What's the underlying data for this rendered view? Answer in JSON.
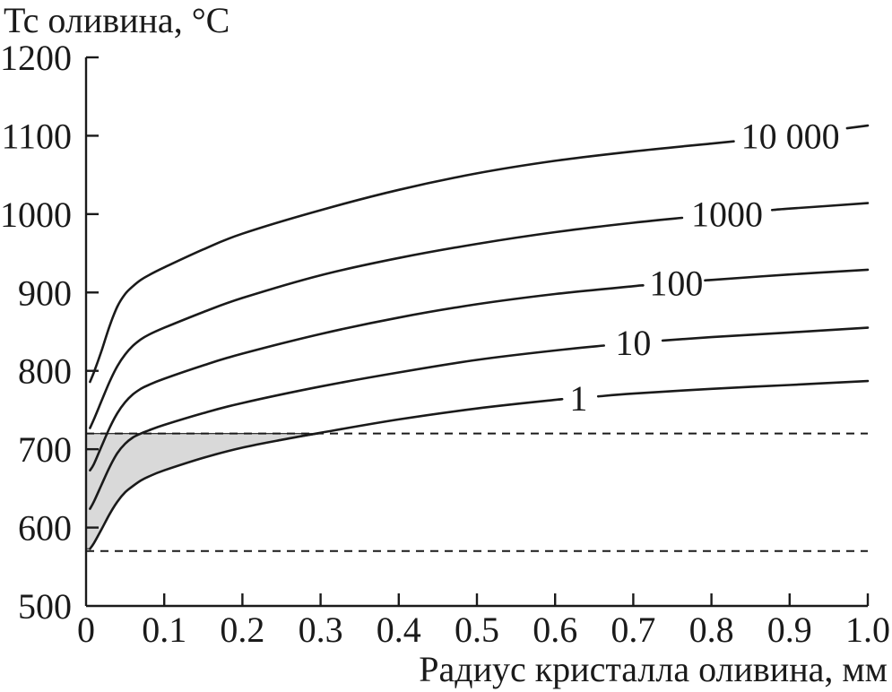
{
  "chart_data": {
    "type": "line",
    "title": "",
    "ylabel": "Tc оливина, °C",
    "xlabel": "Радиус кристалла оливина, мм",
    "xlim": [
      0,
      1.0
    ],
    "ylim": [
      500,
      1200
    ],
    "x_ticks": [
      "0",
      "0.1",
      "0.2",
      "0.3",
      "0.4",
      "0.5",
      "0.6",
      "0.7",
      "0.8",
      "0.9",
      "1.0"
    ],
    "x_tick_values": [
      0,
      0.1,
      0.2,
      0.3,
      0.4,
      0.5,
      0.6,
      0.7,
      0.8,
      0.9,
      1.0
    ],
    "y_ticks": [
      "500",
      "600",
      "700",
      "800",
      "900",
      "1000",
      "1100",
      "1200"
    ],
    "y_tick_values": [
      500,
      600,
      700,
      800,
      900,
      1000,
      1100,
      1200
    ],
    "grid": false,
    "reference_lines": [
      {
        "name": "upper-dashed",
        "y": 720
      },
      {
        "name": "lower-dashed",
        "y": 570
      }
    ],
    "shaded_region": {
      "x_from": 0,
      "x_to": 0.3,
      "y_top": 720,
      "bounded_below_by_series": "1",
      "color": "#d9d9d9"
    },
    "series": [
      {
        "name": "1",
        "label": "1",
        "x": [
          0.005,
          0.01,
          0.02,
          0.03,
          0.04,
          0.05,
          0.06,
          0.07,
          0.08,
          0.1,
          0.15,
          0.2,
          0.25,
          0.3,
          0.4,
          0.5,
          0.6,
          0.7,
          0.8,
          0.9,
          1.0
        ],
        "y": [
          573,
          580,
          598,
          617,
          633,
          645,
          653,
          660,
          665,
          673,
          689,
          702,
          712,
          721,
          738,
          752,
          763,
          771,
          777,
          782,
          787
        ]
      },
      {
        "name": "10",
        "label": "10",
        "x": [
          0.005,
          0.01,
          0.02,
          0.03,
          0.04,
          0.05,
          0.06,
          0.07,
          0.08,
          0.1,
          0.15,
          0.2,
          0.3,
          0.4,
          0.5,
          0.6,
          0.7,
          0.8,
          0.9,
          1.0
        ],
        "y": [
          624,
          633,
          655,
          677,
          695,
          707,
          715,
          720,
          724,
          731,
          746,
          759,
          780,
          798,
          814,
          826,
          836,
          843,
          849,
          855
        ]
      },
      {
        "name": "100",
        "label": "100",
        "x": [
          0.005,
          0.01,
          0.02,
          0.03,
          0.04,
          0.05,
          0.06,
          0.07,
          0.08,
          0.1,
          0.15,
          0.2,
          0.3,
          0.4,
          0.5,
          0.6,
          0.7,
          0.8,
          0.9,
          1.0
        ],
        "y": [
          673,
          681,
          704,
          727,
          746,
          760,
          770,
          777,
          782,
          790,
          807,
          822,
          847,
          868,
          885,
          898,
          908,
          916,
          923,
          929
        ]
      },
      {
        "name": "1000",
        "label": "1000",
        "x": [
          0.005,
          0.01,
          0.02,
          0.03,
          0.04,
          0.05,
          0.06,
          0.07,
          0.08,
          0.1,
          0.15,
          0.2,
          0.3,
          0.4,
          0.5,
          0.6,
          0.7,
          0.8,
          0.9,
          1.0
        ],
        "y": [
          727,
          738,
          762,
          786,
          806,
          821,
          832,
          840,
          846,
          855,
          875,
          893,
          922,
          944,
          962,
          977,
          989,
          999,
          1007,
          1014
        ]
      },
      {
        "name": "10000",
        "label": "10000",
        "x": [
          0.005,
          0.01,
          0.02,
          0.03,
          0.04,
          0.05,
          0.06,
          0.07,
          0.08,
          0.1,
          0.15,
          0.2,
          0.3,
          0.4,
          0.5,
          0.6,
          0.7,
          0.8,
          0.9,
          1.0
        ],
        "y": [
          786,
          798,
          826,
          857,
          882,
          898,
          908,
          916,
          922,
          932,
          955,
          975,
          1005,
          1031,
          1052,
          1068,
          1080,
          1090,
          1100,
          1113
        ]
      }
    ],
    "label_display": [
      "1",
      "10",
      "100",
      "1000",
      "10 000"
    ]
  }
}
